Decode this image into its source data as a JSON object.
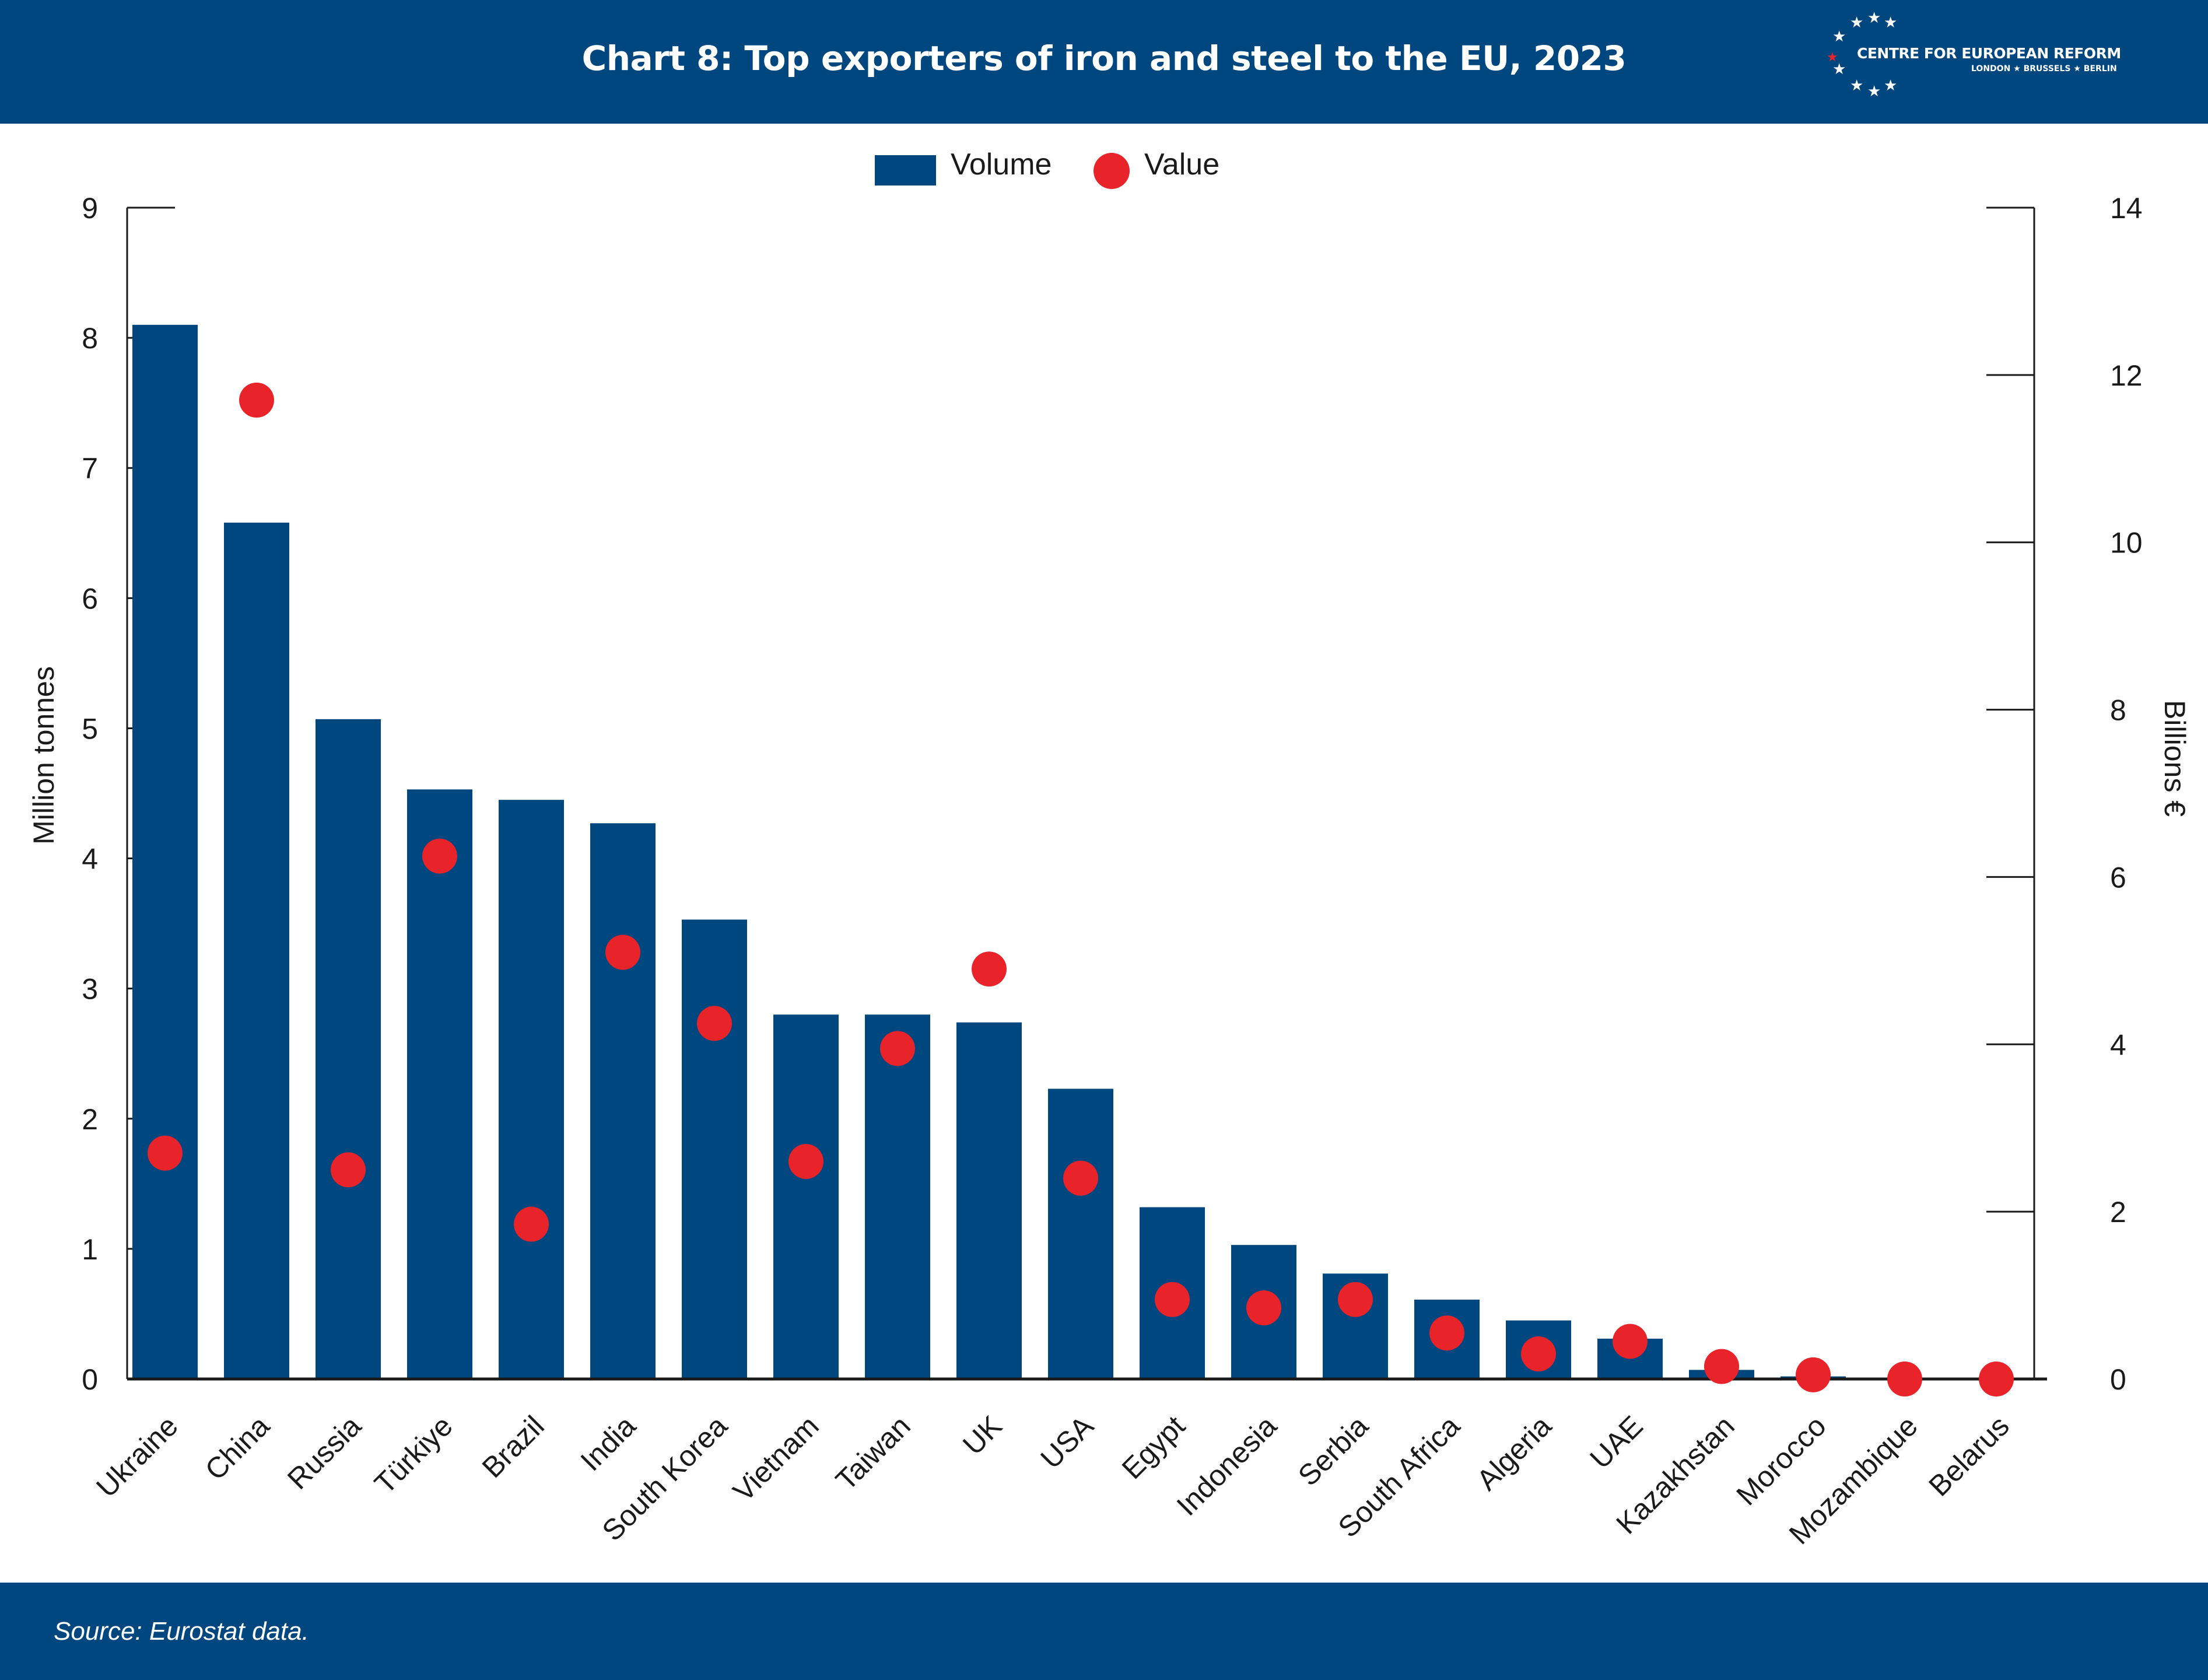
{
  "header": {
    "title": "Chart 8: Top exporters of iron and steel to the EU, 2023",
    "logo_name": "CENTRE FOR EUROPEAN REFORM",
    "logo_cities": "LONDON ★ BRUSSELS ★ BERLIN"
  },
  "footer": {
    "source": "Source: Eurostat data."
  },
  "colors": {
    "brand_blue": "#00467f",
    "value_red": "#e8242a"
  },
  "chart_data": {
    "type": "bar",
    "title": "Chart 8: Top exporters of iron and steel to the EU, 2023",
    "categories": [
      "Ukraine",
      "China",
      "Russia",
      "Türkiye",
      "Brazil",
      "India",
      "South Korea",
      "Vietnam",
      "Taiwan",
      "UK",
      "USA",
      "Egypt",
      "Indonesia",
      "Serbia",
      "South Africa",
      "Algeria",
      "UAE",
      "Kazakhstan",
      "Morocco",
      "Mozambique",
      "Belarus"
    ],
    "series": [
      {
        "name": "Volume",
        "type": "bar",
        "axis": "left",
        "values": [
          8.1,
          6.58,
          5.07,
          4.53,
          4.45,
          4.27,
          3.53,
          2.8,
          2.8,
          2.74,
          2.23,
          1.32,
          1.03,
          0.81,
          0.61,
          0.45,
          0.31,
          0.07,
          0.02,
          0.01,
          0.01
        ]
      },
      {
        "name": "Value",
        "type": "scatter",
        "axis": "right",
        "values": [
          2.7,
          11.7,
          2.5,
          6.25,
          1.85,
          5.1,
          4.25,
          2.6,
          3.95,
          4.9,
          2.4,
          0.95,
          0.85,
          0.95,
          0.55,
          0.3,
          0.45,
          0.15,
          0.05,
          0.0,
          0.0
        ]
      }
    ],
    "ylabel": "Million tonnes",
    "ylim": [
      0,
      9
    ],
    "yticks": [
      0,
      1,
      2,
      3,
      4,
      5,
      6,
      7,
      8,
      9
    ],
    "y2label": "Billions €",
    "y2lim": [
      0,
      14
    ],
    "y2ticks": [
      0,
      2,
      4,
      6,
      8,
      10,
      12,
      14
    ],
    "legend": [
      "Volume",
      "Value"
    ],
    "legend_position": "top-center",
    "grid": false
  }
}
